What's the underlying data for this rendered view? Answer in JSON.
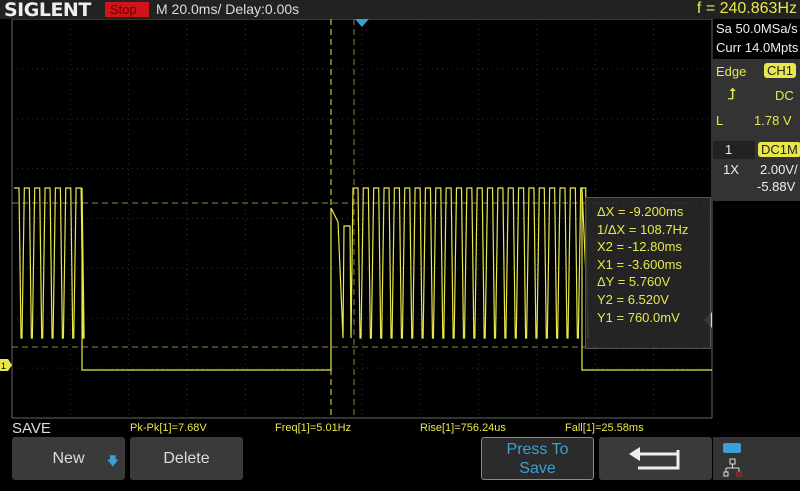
{
  "header": {
    "brand": "SIGLENT",
    "run_state": "Stop",
    "timebase": "M 20.0ms/ Delay:0.00s",
    "frequency": "f = 240.863Hz"
  },
  "acquisition": {
    "sample_rate": "Sa 50.0MSa/s",
    "memory": "Curr 14.0Mpts"
  },
  "trigger": {
    "type": "Edge",
    "source": "CH1",
    "slope_icon": "rising-edge-icon",
    "coupling": "DC",
    "level_label": "L",
    "level": "1.78 V"
  },
  "channel": {
    "number": "1",
    "coupling": "DC1M",
    "probe": "1X",
    "scale": "2.00V/",
    "offset": "-5.88V"
  },
  "cursors": {
    "dx": "ΔX = -9.200ms",
    "inv_dx": "1/ΔX = 108.7Hz",
    "x2": "X2 = -12.80ms",
    "x1": "X1 = -3.600ms",
    "dy": "ΔY = 5.760V",
    "y2": "Y2 = 6.520V",
    "y1": "Y1 = 760.0mV"
  },
  "measurements": [
    "Pk-Pk[1]=7.68V",
    "Freq[1]=5.01Hz",
    "Rise[1]=756.24us",
    "Fall[1]=25.58ms"
  ],
  "menu": {
    "title": "SAVE",
    "new": "New",
    "delete": "Delete",
    "press_to_save": [
      "Press To",
      "Save"
    ]
  },
  "colors": {
    "ch1": "#e8e84a",
    "stop": "#d0141a",
    "accent": "#3aa0d8"
  }
}
